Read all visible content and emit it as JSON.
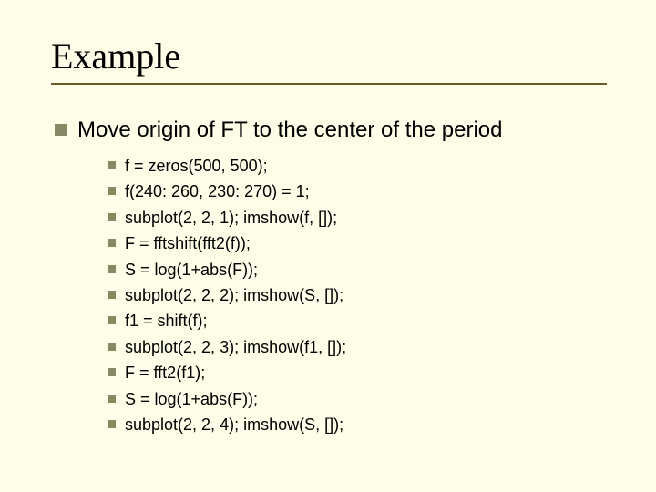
{
  "title": "Example",
  "main_bullet": "Move origin of FT to the center of the period",
  "code_lines": [
    "f = zeros(500, 500);",
    "f(240: 260, 230: 270) = 1;",
    "subplot(2, 2, 1); imshow(f, []);",
    "F = fftshift(fft2(f));",
    "S = log(1+abs(F));",
    "subplot(2, 2, 2); imshow(S, []);",
    "f1 = shift(f);",
    "subplot(2, 2, 3); imshow(f1, []);",
    "F = fft2(f1);",
    "S = log(1+abs(F));",
    "subplot(2, 2, 4); imshow(S, []);"
  ],
  "colors": {
    "background": "#fdfde8",
    "underline": "#6b5a2e",
    "bullet": "#878864",
    "text": "#000000"
  },
  "typography": {
    "title_family": "Times New Roman",
    "title_fontsize": 40,
    "body_family": "Arial",
    "main_fontsize": 24,
    "sub_fontsize": 18
  }
}
